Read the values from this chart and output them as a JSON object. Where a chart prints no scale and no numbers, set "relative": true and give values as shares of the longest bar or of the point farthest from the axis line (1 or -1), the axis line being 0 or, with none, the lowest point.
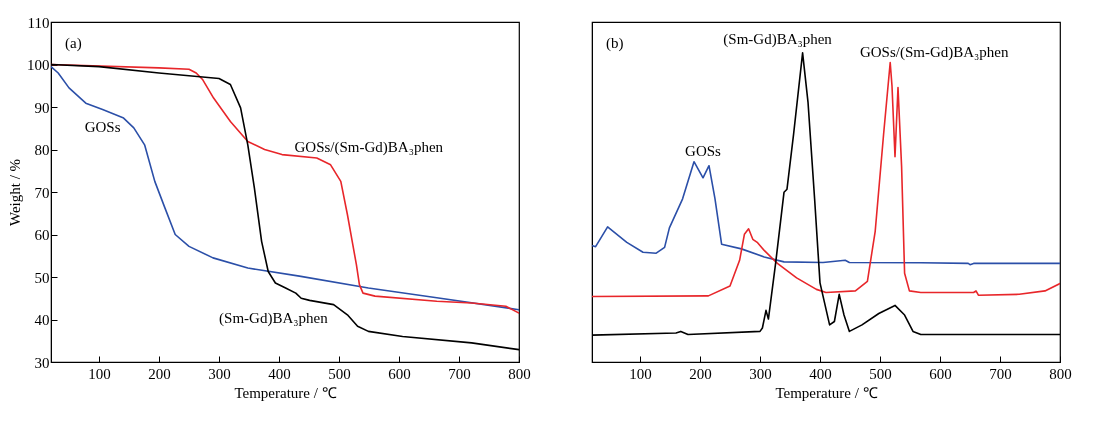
{
  "chart_data": [
    {
      "type": "line",
      "xlabel": "Temperature / ℃",
      "ylabel": "Weight / %",
      "xlim": [
        20,
        800
      ],
      "xticks": [
        100,
        200,
        300,
        400,
        500,
        600,
        700,
        800
      ],
      "ylim": [
        30,
        110
      ],
      "yticks": [
        30,
        40,
        50,
        60,
        70,
        80,
        90,
        100,
        110
      ],
      "grid": false,
      "series": [
        {
          "name": "GOSs",
          "color": "#2b4fa8",
          "x": [
            20,
            32,
            50,
            78,
            106,
            141,
            158,
            176,
            193,
            210,
            227,
            250,
            290,
            348,
            434,
            549,
            663,
            800
          ],
          "values": [
            99.5,
            98,
            94.5,
            90.9,
            89.4,
            87.4,
            85.1,
            81.1,
            72.5,
            66.2,
            60,
            57.2,
            54.5,
            52.1,
            50.2,
            47.4,
            45.1,
            42.3
          ]
        },
        {
          "name": "GOSs/(Sm-Gd)BA₃phen",
          "color": "#e8262a",
          "x": [
            20,
            200,
            250,
            262,
            273,
            291,
            319,
            348,
            376,
            405,
            463,
            486,
            503,
            514,
            523,
            529,
            534,
            540,
            560,
            663,
            721,
            778,
            800
          ],
          "values": [
            100,
            99.2,
            98.9,
            98,
            96.4,
            92.1,
            86.6,
            81.9,
            80,
            78.8,
            78,
            76.4,
            72.5,
            64.7,
            57.6,
            52.9,
            48.2,
            46.2,
            45.5,
            44.3,
            43.9,
            43.1,
            41.5
          ]
        },
        {
          "name": "(Sm-Gd)BA₃phen",
          "color": "#000000",
          "x": [
            20,
            100,
            200,
            300,
            319,
            336,
            348,
            359,
            371,
            382,
            394,
            411,
            428,
            437,
            451,
            491,
            514,
            531,
            549,
            606,
            721,
            800
          ],
          "values": [
            100,
            99.5,
            98,
            96.7,
            95.3,
            89.8,
            81.1,
            70.9,
            58.4,
            51.3,
            48.6,
            47.4,
            46.2,
            45,
            44.5,
            43.5,
            41.1,
            38.4,
            37.2,
            36,
            34.5,
            32.9
          ]
        }
      ],
      "annotations": [
        "(a)"
      ]
    },
    {
      "type": "line",
      "xlabel": "Temperature / ℃",
      "xlim": [
        20,
        800
      ],
      "xticks": [
        100,
        200,
        300,
        400,
        500,
        600,
        700,
        800
      ],
      "relative": true,
      "tick_labels": "x",
      "grid": false,
      "series": [
        {
          "name": "GOSs",
          "color": "#2b4fa8",
          "x": [
            21,
            26,
            46,
            78,
            105,
            127,
            141,
            149,
            171,
            190,
            205,
            215,
            225,
            236,
            269,
            307,
            340,
            405,
            442,
            449,
            568,
            647,
            650,
            656,
            800
          ],
          "values": [
            0.376,
            0.373,
            0.437,
            0.387,
            0.355,
            0.352,
            0.371,
            0.434,
            0.528,
            0.648,
            0.596,
            0.635,
            0.528,
            0.381,
            0.366,
            0.34,
            0.324,
            0.322,
            0.329,
            0.322,
            0.321,
            0.319,
            0.315,
            0.319,
            0.319
          ]
        },
        {
          "name": "GOSs/(Sm-Gd)BA₃phen",
          "color": "#e8262a",
          "x": [
            20,
            214,
            250,
            266,
            274,
            281,
            288,
            296,
            307,
            329,
            361,
            394,
            410,
            459,
            479,
            492,
            506,
            517,
            520,
            525,
            530,
            536,
            541,
            549,
            568,
            656,
            660,
            664,
            732,
            775,
            800
          ],
          "values": [
            0.212,
            0.214,
            0.246,
            0.329,
            0.413,
            0.431,
            0.397,
            0.386,
            0.361,
            0.319,
            0.272,
            0.235,
            0.225,
            0.23,
            0.261,
            0.423,
            0.737,
            0.969,
            0.893,
            0.664,
            0.888,
            0.632,
            0.287,
            0.23,
            0.225,
            0.225,
            0.23,
            0.216,
            0.219,
            0.23,
            0.254
          ]
        },
        {
          "name": "(Sm-Gd)BA₃phen",
          "color": "#000000",
          "x": [
            20,
            160,
            168,
            180,
            300,
            304,
            310,
            314,
            326,
            340,
            345,
            356,
            371,
            380,
            391,
            400,
            416,
            424,
            432,
            440,
            449,
            470,
            498,
            525,
            541,
            555,
            568,
            800
          ],
          "values": [
            0.087,
            0.094,
            0.099,
            0.089,
            0.099,
            0.11,
            0.167,
            0.139,
            0.319,
            0.549,
            0.559,
            0.737,
            1.0,
            0.841,
            0.528,
            0.256,
            0.12,
            0.131,
            0.219,
            0.152,
            0.099,
            0.12,
            0.157,
            0.183,
            0.152,
            0.099,
            0.089,
            0.089
          ]
        }
      ],
      "annotations": [
        "(b)"
      ]
    }
  ]
}
